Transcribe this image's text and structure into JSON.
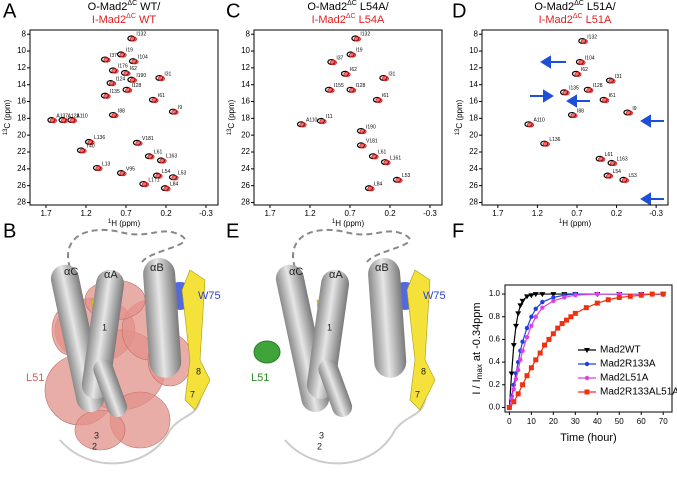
{
  "panel_labels": [
    "A",
    "B",
    "C",
    "D",
    "E",
    "F"
  ],
  "chart_data": [
    {
      "type": "spectrum",
      "title": [
        {
          "base": "O-Mad2",
          "sup": "ΔC",
          "rest": " WT/"
        },
        {
          "base": "I-Mad2",
          "sup": "ΔC",
          "rest": " WT"
        }
      ],
      "title_colors": [
        "#000000",
        "#e02020"
      ],
      "xlabel": {
        "sup": "1",
        "base": "H (ppm)"
      },
      "ylabel": {
        "sup": "13",
        "base": "C (ppm)"
      },
      "xlim": [
        1.9,
        -0.45
      ],
      "xticks": [
        1.7,
        1.2,
        0.7,
        0.2,
        -0.3
      ],
      "ylim": [
        7.5,
        28.3
      ],
      "yticks": [
        8,
        10,
        12,
        14,
        16,
        18,
        20,
        22,
        24,
        26,
        28
      ],
      "y_reversed": true,
      "colors": [
        "#000000",
        "#e02020"
      ],
      "peaks": {
        "x": [
          0.62,
          0.75,
          0.95,
          0.6,
          0.85,
          0.7,
          0.62,
          0.27,
          0.88,
          0.68,
          0.95,
          0.35,
          0.1,
          0.85,
          1.37,
          1.62,
          1.48,
          1.15,
          0.55,
          1.25,
          1.05,
          0.4,
          0.25,
          0.3,
          0.1,
          0.2,
          0.47,
          0.75
        ],
        "y": [
          8.5,
          10.4,
          11,
          11.2,
          12.3,
          12.6,
          13.4,
          13.2,
          13.8,
          14.6,
          15.3,
          15.8,
          17.2,
          17.6,
          18.2,
          18.2,
          18.2,
          20.8,
          20.9,
          21.8,
          23.9,
          22.5,
          23,
          24.8,
          25,
          26.3,
          25.8,
          24.5
        ],
        "labels": [
          "I132",
          "I19",
          "I37",
          "I104",
          "I176",
          "I62",
          "I190",
          "I31",
          "I124",
          "I128",
          "I135",
          "I61",
          "I9",
          "I88",
          "A110",
          "A137",
          "A123",
          "L136",
          "V181",
          "T40",
          "L13",
          "L61",
          "L163",
          "L54",
          "L53",
          "L84",
          "L171",
          "V95"
        ]
      }
    },
    {
      "type": "spectrum",
      "title": [
        {
          "base": "O-Mad2",
          "sup": "ΔC",
          "rest": " L54A/"
        },
        {
          "base": "I-Mad2",
          "sup": "ΔC",
          "rest": " L54A"
        }
      ],
      "title_colors": [
        "#000000",
        "#e02020"
      ],
      "xlabel": {
        "sup": "1",
        "base": "H (ppm)"
      },
      "ylabel": {
        "sup": "13",
        "base": "C (ppm)"
      },
      "xlim": [
        1.9,
        -0.45
      ],
      "xticks": [
        1.7,
        1.2,
        0.7,
        0.2,
        -0.3
      ],
      "ylim": [
        7.5,
        28.3
      ],
      "yticks": [
        8,
        10,
        12,
        14,
        16,
        18,
        20,
        22,
        24,
        26,
        28
      ],
      "y_reversed": true,
      "colors": [
        "#000000",
        "#e02020"
      ],
      "peaks": {
        "x": [
          0.62,
          0.68,
          0.92,
          0.75,
          0.27,
          0.68,
          0.95,
          0.35,
          1.05,
          1.3,
          0.55,
          0.55,
          0.4,
          0.25,
          0.1,
          0.45
        ],
        "y": [
          8.5,
          10.4,
          11.3,
          12.7,
          13.2,
          14.6,
          14.6,
          15.8,
          18.3,
          18.7,
          19.5,
          21.2,
          22.5,
          23.2,
          25.3,
          26.3
        ],
        "labels": [
          "I132",
          "I19",
          "I37",
          "I62",
          "I31",
          "I128",
          "I155",
          "I61",
          "I11",
          "A110",
          "I190",
          "V181",
          "L61",
          "L161",
          "L53",
          "L84"
        ]
      }
    },
    {
      "type": "spectrum",
      "title": [
        {
          "base": "O-Mad2",
          "sup": "ΔC",
          "rest": " L51A/"
        },
        {
          "base": "I-Mad2",
          "sup": "ΔC",
          "rest": " L51A"
        }
      ],
      "title_colors": [
        "#000000",
        "#e02020"
      ],
      "xlabel": {
        "sup": "1",
        "base": "H (ppm)"
      },
      "ylabel": {
        "sup": "13",
        "base": "C (ppm)"
      },
      "xlim": [
        1.9,
        -0.45
      ],
      "xticks": [
        1.7,
        1.2,
        0.7,
        0.2,
        -0.3
      ],
      "ylim": [
        7.5,
        28.3
      ],
      "yticks": [
        8,
        10,
        12,
        14,
        16,
        18,
        20,
        22,
        24,
        26,
        28
      ],
      "y_reversed": true,
      "colors": [
        "#000000",
        "#e02020"
      ],
      "peaks": {
        "x": [
          0.62,
          0.65,
          0.7,
          0.27,
          0.85,
          0.55,
          0.35,
          0.05,
          0.75,
          1.3,
          1.1,
          0.4,
          0.25,
          0.3,
          0.1
        ],
        "y": [
          8.8,
          11.3,
          12.7,
          13.5,
          14.9,
          14.6,
          15.8,
          17.3,
          17.6,
          18.7,
          21,
          22.8,
          23.3,
          24.8,
          25.3
        ],
        "labels": [
          "I132",
          "I104",
          "I62",
          "I31",
          "I135",
          "I128",
          "I61",
          "I9",
          "I88",
          "A110",
          "L136",
          "L61",
          "L163",
          "L54",
          "L53"
        ]
      }
    },
    {
      "type": "line",
      "xlabel": "Time (hour)",
      "ylabel": {
        "base": "I / I",
        "sub": "max",
        "rest": " at -0.34ppm"
      },
      "xlim": [
        -2,
        74
      ],
      "xticks": [
        0,
        10,
        20,
        30,
        40,
        50,
        60,
        70
      ],
      "ylim": [
        -0.04,
        1.08
      ],
      "yticks": [
        {
          "value": 0,
          "label": "0.0"
        },
        {
          "value": 0.2,
          "label": "0.2"
        },
        {
          "value": 0.4,
          "label": "0.4"
        },
        {
          "value": 0.6,
          "label": "0.6"
        },
        {
          "value": 0.8,
          "label": "0.8"
        },
        {
          "value": 1,
          "label": "1.0"
        }
      ],
      "legend": "lower-right",
      "series": [
        {
          "name": "Mad2WT",
          "color": "#000000",
          "marker": "triangle",
          "x": [
            0,
            1,
            2,
            3,
            4,
            5,
            6,
            8,
            10,
            12,
            15,
            20,
            25,
            30,
            40,
            50,
            60,
            70
          ],
          "values": [
            0,
            0.3,
            0.55,
            0.72,
            0.83,
            0.9,
            0.94,
            0.98,
            0.99,
            1,
            1,
            1,
            1,
            1,
            1,
            1,
            1,
            1
          ]
        },
        {
          "name": "Mad2R133A",
          "color": "#1f3fe0",
          "marker": "circle",
          "x": [
            0,
            1,
            2,
            3,
            4,
            5,
            6,
            8,
            10,
            12,
            15,
            20,
            25,
            30,
            40,
            50,
            60,
            70
          ],
          "values": [
            0,
            0.1,
            0.2,
            0.3,
            0.4,
            0.5,
            0.58,
            0.7,
            0.8,
            0.87,
            0.93,
            0.97,
            0.99,
            1,
            1,
            1,
            1,
            1
          ]
        },
        {
          "name": "Mad2L51A",
          "color": "#e040e0",
          "marker": "circle",
          "x": [
            0,
            1,
            2,
            3,
            4,
            5,
            6,
            8,
            10,
            12,
            15,
            20,
            25,
            30,
            40,
            50,
            60,
            70
          ],
          "values": [
            0,
            0.08,
            0.16,
            0.25,
            0.33,
            0.42,
            0.5,
            0.62,
            0.72,
            0.8,
            0.88,
            0.94,
            0.97,
            0.99,
            1,
            1,
            1,
            1
          ]
        },
        {
          "name": "Mad2R133AL51A",
          "color": "#f03010",
          "marker": "square",
          "x": [
            0,
            2,
            4,
            6,
            8,
            10,
            12,
            14,
            16,
            18,
            20,
            22,
            24,
            26,
            28,
            30,
            35,
            40,
            45,
            50,
            55,
            60,
            65,
            70
          ],
          "values": [
            0,
            0.05,
            0.12,
            0.2,
            0.28,
            0.35,
            0.42,
            0.48,
            0.55,
            0.6,
            0.65,
            0.7,
            0.74,
            0.77,
            0.8,
            0.83,
            0.88,
            0.92,
            0.95,
            0.97,
            0.98,
            0.99,
            1,
            1
          ]
        }
      ]
    }
  ],
  "structures": [
    {
      "labels": [
        "αC",
        "αA",
        "αB",
        "W75",
        "L51",
        "1",
        "3",
        "2",
        "8",
        "7"
      ]
    },
    {
      "labels": [
        "αC",
        "αA",
        "αB",
        "W75",
        "L51",
        "1",
        "3",
        "2",
        "8",
        "7"
      ]
    }
  ]
}
